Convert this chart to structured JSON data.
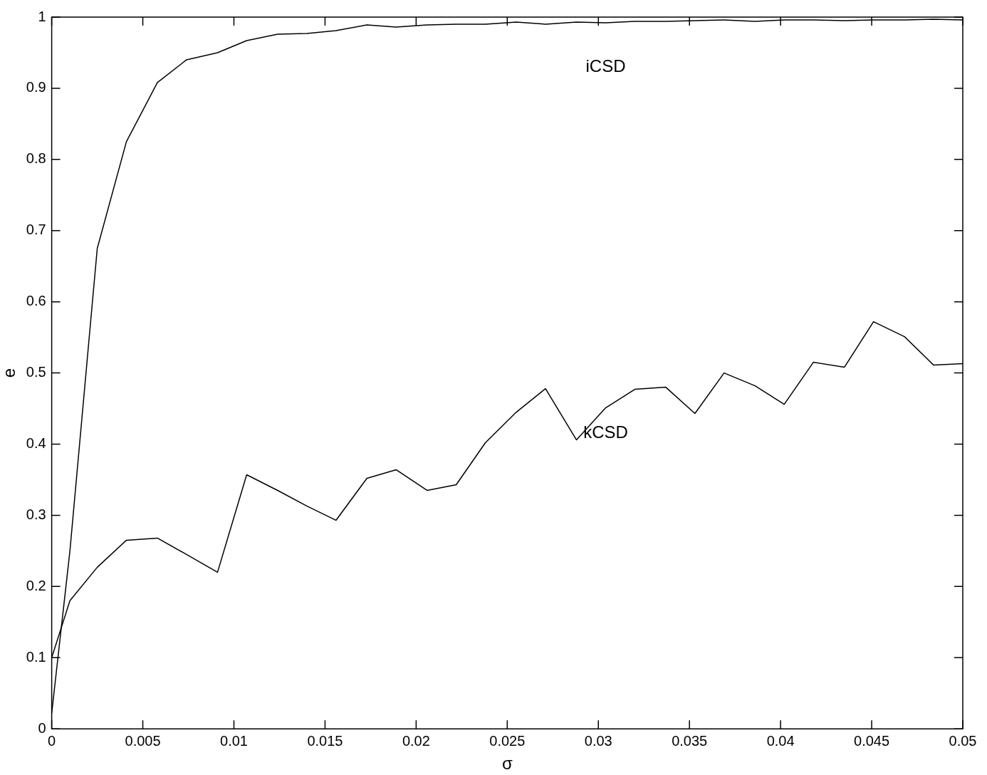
{
  "chart_data": {
    "type": "line",
    "xlabel": "σ",
    "ylabel": "e",
    "xlim": [
      0,
      0.05
    ],
    "xticks": [
      0,
      0.005,
      0.01,
      0.015,
      0.02,
      0.025,
      0.03,
      0.035,
      0.04,
      0.045,
      0.05
    ],
    "ylim": [
      0,
      1
    ],
    "yticks": [
      0,
      0.1,
      0.2,
      0.3,
      0.4,
      0.5,
      0.6,
      0.7,
      0.8,
      0.9,
      1
    ],
    "x": [
      0,
      0.001,
      0.0025,
      0.0041,
      0.0058,
      0.0074,
      0.0091,
      0.0107,
      0.0124,
      0.014,
      0.0156,
      0.0173,
      0.0189,
      0.0206,
      0.0222,
      0.0238,
      0.0255,
      0.0271,
      0.0288,
      0.0304,
      0.032,
      0.0337,
      0.0353,
      0.0369,
      0.0386,
      0.0402,
      0.0418,
      0.0435,
      0.0451,
      0.0468,
      0.0484,
      0.05
    ],
    "series": [
      {
        "name": "iCSD",
        "color": "#000000",
        "values": [
          0.022,
          0.25,
          0.675,
          0.825,
          0.908,
          0.94,
          0.95,
          0.967,
          0.976,
          0.977,
          0.981,
          0.989,
          0.986,
          0.989,
          0.99,
          0.99,
          0.993,
          0.99,
          0.993,
          0.992,
          0.994,
          0.994,
          0.995,
          0.996,
          0.994,
          0.996,
          0.996,
          0.995,
          0.996,
          0.996,
          0.997,
          0.996
        ]
      },
      {
        "name": "kCSD",
        "color": "#000000",
        "values": [
          0.1,
          0.18,
          0.227,
          0.265,
          0.268,
          0.245,
          0.22,
          0.357,
          0.335,
          0.313,
          0.293,
          0.352,
          0.364,
          0.335,
          0.343,
          0.402,
          0.445,
          0.478,
          0.406,
          0.451,
          0.477,
          0.48,
          0.443,
          0.5,
          0.482,
          0.456,
          0.515,
          0.508,
          0.572,
          0.551,
          0.511,
          0.513
        ]
      }
    ],
    "grid": false,
    "legend": false,
    "marker": "none",
    "line_style": "solid"
  }
}
